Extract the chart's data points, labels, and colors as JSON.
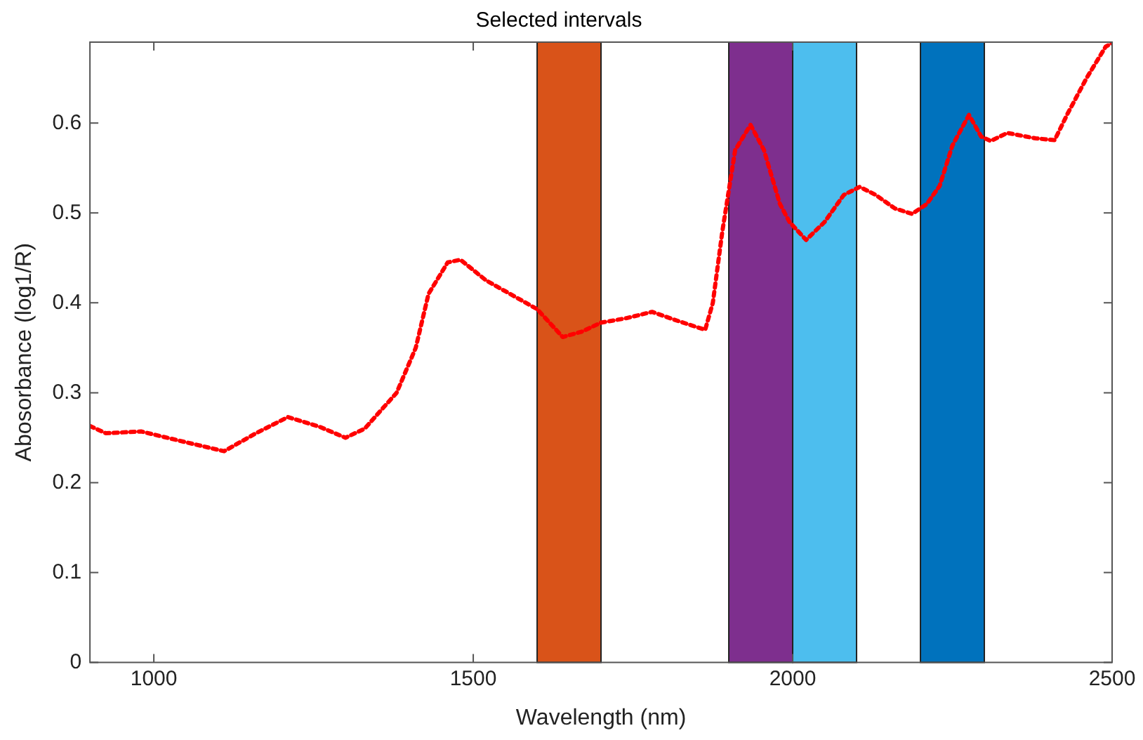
{
  "chart_data": {
    "type": "line",
    "title": "Selected intervals",
    "xlabel": "Wavelength (nm)",
    "ylabel": "Abosorbance (log1/R)",
    "xlim": [
      900,
      2500
    ],
    "xticks": [
      1000,
      1500,
      2000,
      2500
    ],
    "ylim": [
      0,
      0.69
    ],
    "yticks": [
      0,
      0.1,
      0.2,
      0.3,
      0.4,
      0.5,
      0.6
    ],
    "grid": false,
    "legend": false,
    "line_style": "dotted",
    "marker": "none",
    "bands": [
      {
        "axis": "x",
        "from": 1600,
        "to": 1700,
        "color": "#d95319"
      },
      {
        "axis": "x",
        "from": 1900,
        "to": 2000,
        "color": "#7e2f8e"
      },
      {
        "axis": "x",
        "from": 2000,
        "to": 2100,
        "color": "#4dbeee"
      },
      {
        "axis": "x",
        "from": 2200,
        "to": 2300,
        "color": "#0072bd"
      }
    ],
    "series": [
      {
        "color": "#ff0000",
        "x": [
          900,
          925,
          980,
          1050,
          1110,
          1160,
          1210,
          1260,
          1300,
          1330,
          1380,
          1410,
          1430,
          1460,
          1480,
          1520,
          1550,
          1600,
          1640,
          1670,
          1700,
          1740,
          1780,
          1820,
          1863,
          1875,
          1890,
          1910,
          1934,
          1955,
          1980,
          1995,
          2021,
          2050,
          2080,
          2105,
          2130,
          2160,
          2187,
          2210,
          2230,
          2250,
          2276,
          2295,
          2310,
          2336,
          2380,
          2410,
          2430,
          2460,
          2490,
          2500
        ],
        "values": [
          0.263,
          0.255,
          0.257,
          0.245,
          0.235,
          0.255,
          0.273,
          0.262,
          0.25,
          0.26,
          0.3,
          0.35,
          0.41,
          0.445,
          0.448,
          0.425,
          0.413,
          0.393,
          0.362,
          0.368,
          0.378,
          0.383,
          0.39,
          0.38,
          0.37,
          0.4,
          0.48,
          0.57,
          0.598,
          0.57,
          0.51,
          0.49,
          0.47,
          0.49,
          0.52,
          0.529,
          0.52,
          0.505,
          0.499,
          0.51,
          0.53,
          0.575,
          0.609,
          0.585,
          0.58,
          0.589,
          0.583,
          0.581,
          0.61,
          0.65,
          0.685,
          0.689
        ]
      }
    ]
  }
}
